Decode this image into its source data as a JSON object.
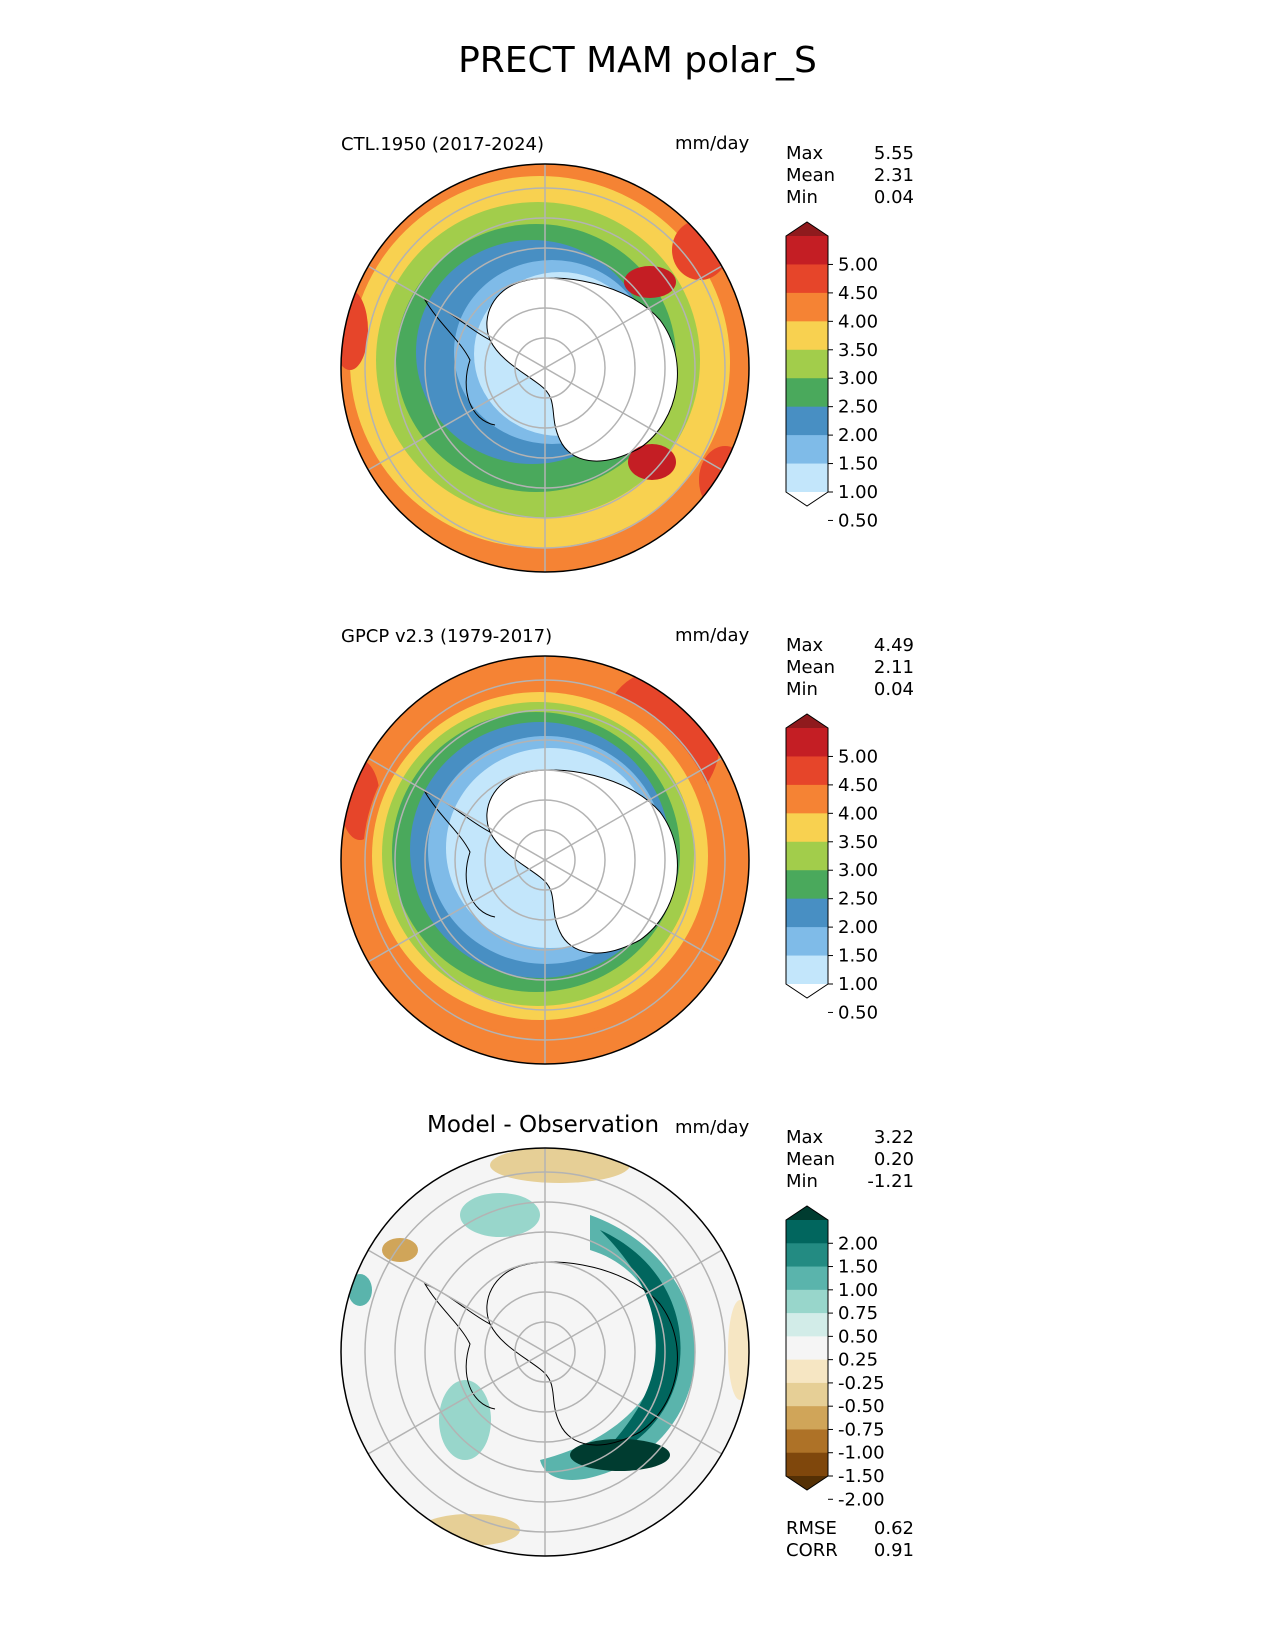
{
  "figure_title": "PRECT MAM polar_S",
  "chart_data": [
    {
      "type": "heatmap",
      "projection": "south-polar-stereographic",
      "title": "CTL.1950 (2017-2024)",
      "units": "mm/day",
      "stats": [
        {
          "label": "Max",
          "value": "5.55"
        },
        {
          "label": "Mean",
          "value": "2.31"
        },
        {
          "label": "Min",
          "value": "0.04"
        }
      ],
      "colorbar": {
        "ticks": [
          "5.00",
          "4.50",
          "4.00",
          "3.50",
          "3.00",
          "2.50",
          "2.00",
          "1.50",
          "1.00",
          "0.50"
        ],
        "colors": [
          "#8f1a1d",
          "#c41e24",
          "#e6452a",
          "#f58334",
          "#f8d150",
          "#a2cd4b",
          "#4aa95c",
          "#488fc3",
          "#7fbbe8",
          "#c3e6fb",
          "#ffffff"
        ]
      }
    },
    {
      "type": "heatmap",
      "projection": "south-polar-stereographic",
      "title": "GPCP v2.3 (1979-2017)",
      "units": "mm/day",
      "stats": [
        {
          "label": "Max",
          "value": "4.49"
        },
        {
          "label": "Mean",
          "value": "2.11"
        },
        {
          "label": "Min",
          "value": "0.04"
        }
      ],
      "colorbar": {
        "ticks": [
          "5.00",
          "4.50",
          "4.00",
          "3.50",
          "3.00",
          "2.50",
          "2.00",
          "1.50",
          "1.00",
          "0.50"
        ],
        "colors": [
          "#8f1a1d",
          "#c41e24",
          "#e6452a",
          "#f58334",
          "#f8d150",
          "#a2cd4b",
          "#4aa95c",
          "#488fc3",
          "#7fbbe8",
          "#c3e6fb",
          "#ffffff"
        ]
      }
    },
    {
      "type": "heatmap",
      "projection": "south-polar-stereographic",
      "title": "Model - Observation",
      "units": "mm/day",
      "stats": [
        {
          "label": "Max",
          "value": "3.22"
        },
        {
          "label": "Mean",
          "value": "0.20"
        },
        {
          "label": "Min",
          "value": "-1.21"
        }
      ],
      "extra_stats": [
        {
          "label": "RMSE",
          "value": "0.62"
        },
        {
          "label": "CORR",
          "value": "0.91"
        }
      ],
      "colorbar": {
        "ticks": [
          "2.00",
          "1.50",
          "1.00",
          "0.75",
          "0.50",
          "0.25",
          "-0.25",
          "-0.50",
          "-0.75",
          "-1.00",
          "-1.50",
          "-2.00"
        ],
        "colors": [
          "#003c30",
          "#01665e",
          "#238b82",
          "#5ab4ac",
          "#98d6cb",
          "#d2ece8",
          "#f5f5f5",
          "#f6e6c3",
          "#e6cf96",
          "#d0a559",
          "#ae7227",
          "#7f470c",
          "#543005"
        ]
      }
    }
  ]
}
